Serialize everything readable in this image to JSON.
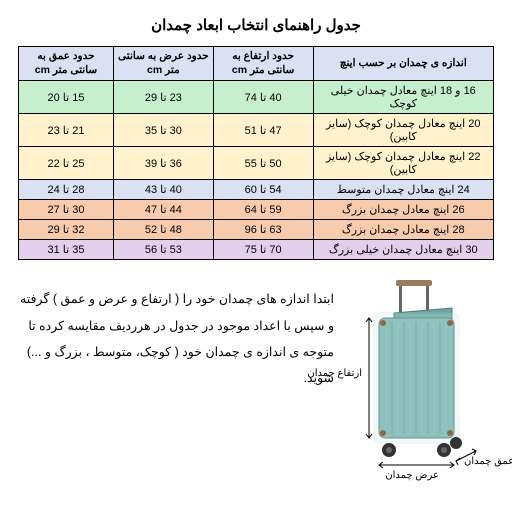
{
  "title": "جدول راهنمای انتخاب ابعاد چمدان",
  "headers": {
    "size": "اندازه ی چمدان بر حسب اینچ",
    "height": "حدود ارتفاع به سانتی متر\ncm",
    "width": "حدود عرض به سانتی متر\ncm",
    "depth": "حدود عمق به سانتی متر\ncm"
  },
  "rows": [
    {
      "size": "16 و 18 اینچ معادل چمدان خیلی کوچک",
      "height": "40 تا 74",
      "width": "23 تا 29",
      "depth": "15 تا 20",
      "bg": "#c6efce"
    },
    {
      "size": "20 اینچ معادل چمدان کوچک (سایز کابین)",
      "height": "47 تا 51",
      "width": "30 تا 35",
      "depth": "21 تا 23",
      "bg": "#fff2cc"
    },
    {
      "size": "22 اینچ معادل چمدان کوچک (سایز کابین)",
      "height": "50 تا 55",
      "width": "36 تا 39",
      "depth": "25 تا 22",
      "bg": "#fff2cc"
    },
    {
      "size": "24 اینچ معادل چمدان متوسط",
      "height": "54 تا 60",
      "width": "40 تا 43",
      "depth": "28 تا 24",
      "bg": "#d9e1f2"
    },
    {
      "size": "26 اینچ معادل چمدان بزرگ",
      "height": "59 تا 64",
      "width": "44 تا 47",
      "depth": "30 تا 27",
      "bg": "#f8cbad"
    },
    {
      "size": "28 اینچ معادل چمدان بزرگ",
      "height": "63 تا 96",
      "width": "48 تا 52",
      "depth": "32 تا 29",
      "bg": "#f8cbad"
    },
    {
      "size": "30 اینچ معادل چمدان خیلی بزرگ",
      "height": "70 تا 75",
      "width": "53 تا 56",
      "depth": "35 تا 31",
      "bg": "#e2cfec"
    }
  ],
  "instructions": "ابتدا اندازه های چمدان خود را ( ارتفاع و عرض و عمق ) گرفته و سپس با اعداد موجود در جدول در هرردیف مقایسه کرده تا متوجه ی اندازه ی چمدان خود ( کوچک، متوسط ، بزرگ و ...) شوید.",
  "dimLabels": {
    "height": "ارتفاع چمدان",
    "width": "عرض چمدان",
    "depth": "عمق چمدان"
  },
  "luggage": {
    "bodyColor": "#7ab5b0",
    "bodyStroke": "#4a7b78",
    "handleColor": "#9b7a5e",
    "rivetColor": "#8b6a4a",
    "wheelColor": "#333333",
    "overlayOpacity": "0.25"
  }
}
